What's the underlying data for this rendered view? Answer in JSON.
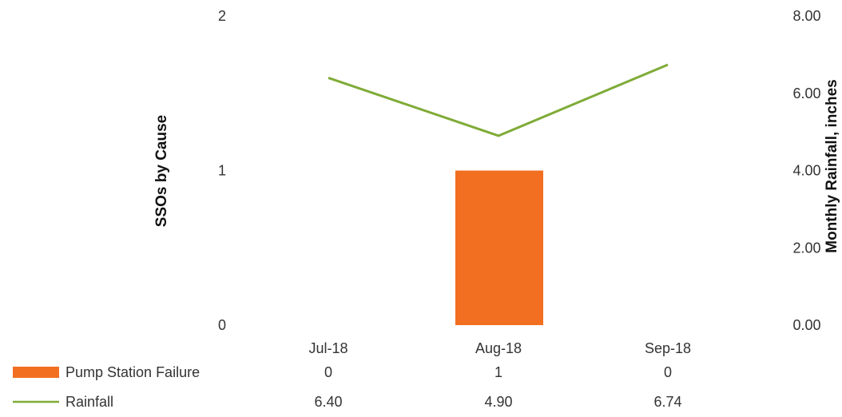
{
  "chart_data": {
    "type": "bar",
    "categories": [
      "Jul-18",
      "Aug-18",
      "Sep-18"
    ],
    "series": [
      {
        "name": "Pump Station Failure",
        "type": "bar",
        "axis": "left",
        "values": [
          0,
          1,
          0
        ],
        "value_labels": [
          "0",
          "1",
          "0"
        ],
        "color": "#f26f21"
      },
      {
        "name": "Rainfall",
        "type": "line",
        "axis": "right",
        "values": [
          6.4,
          4.9,
          6.74
        ],
        "value_labels": [
          "6.40",
          "4.90",
          "6.74"
        ],
        "color": "#7fab37"
      }
    ],
    "ylabel": "SSOs by Cause",
    "ylim": [
      0,
      2
    ],
    "yticks": [
      "0",
      "1",
      "2"
    ],
    "y2label": "Monthly Rainfall, inches",
    "y2lim": [
      0,
      8
    ],
    "y2ticks": [
      "0.00",
      "2.00",
      "4.00",
      "6.00",
      "8.00"
    ],
    "grid": false,
    "legend": "data table below chart"
  }
}
